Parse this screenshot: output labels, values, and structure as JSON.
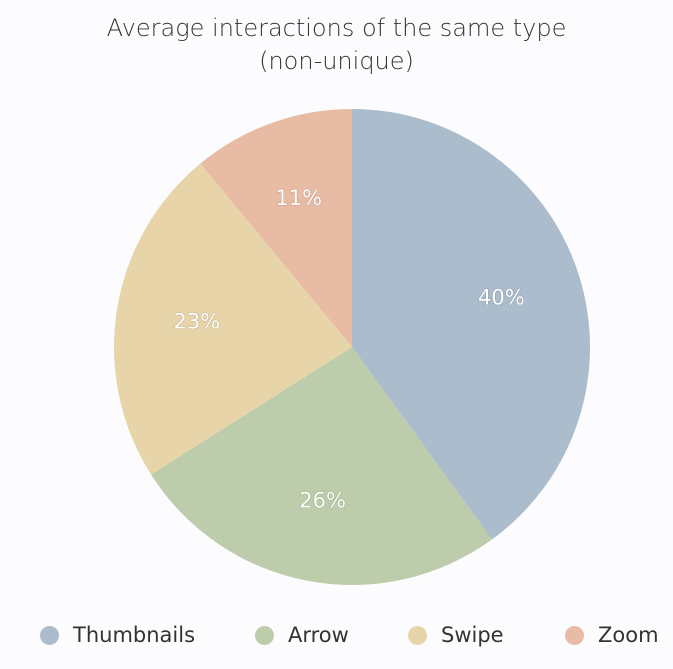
{
  "chart_data": {
    "type": "pie",
    "title_lines": [
      "Average interactions of the same type",
      "(non-unique)"
    ],
    "categories": [
      "Thumbnails",
      "Arrow",
      "Swipe",
      "Zoom"
    ],
    "values": [
      40,
      26,
      23,
      11
    ],
    "labels": [
      "40%",
      "26%",
      "23%",
      "11%"
    ],
    "colors": [
      "#abbccd",
      "#bdccaa",
      "#e7d5a9",
      "#e8bca4"
    ],
    "legend_position": "bottom"
  }
}
